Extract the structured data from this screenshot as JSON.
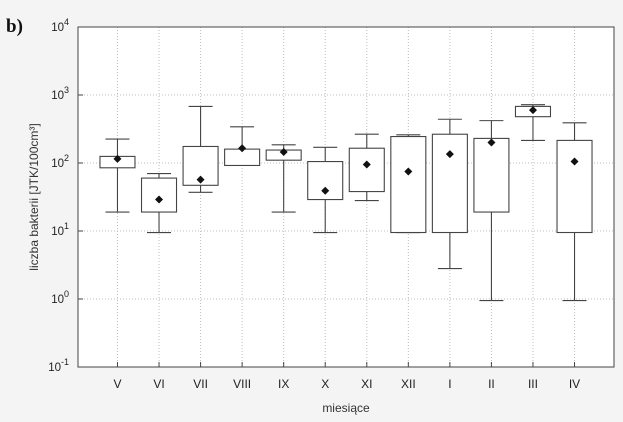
{
  "chart_data": {
    "type": "boxplot",
    "panel_label": "b)",
    "xlabel": "miesiące",
    "ylabel": "liczba bakterii [JTK/100cm³]",
    "yscale": "log",
    "ylim": [
      0.1,
      10000
    ],
    "yticks": [
      {
        "value": 0.1,
        "base": "10",
        "exp": "-1"
      },
      {
        "value": 1,
        "base": "10",
        "exp": "0"
      },
      {
        "value": 10,
        "base": "10",
        "exp": "1"
      },
      {
        "value": 100,
        "base": "10",
        "exp": "2"
      },
      {
        "value": 1000,
        "base": "10",
        "exp": "3"
      },
      {
        "value": 10000,
        "base": "10",
        "exp": "4"
      }
    ],
    "grid": true,
    "categories": [
      "V",
      "VI",
      "VII",
      "VIII",
      "IX",
      "X",
      "XI",
      "XII",
      "I",
      "II",
      "III",
      "IV"
    ],
    "boxes": [
      {
        "min": 19,
        "q1": 85,
        "q3": 125,
        "max": 225,
        "mean": 115
      },
      {
        "min": 9.5,
        "q1": 19,
        "q3": 60,
        "max": 70,
        "mean": 29
      },
      {
        "min": 37,
        "q1": 47,
        "q3": 175,
        "max": 680,
        "mean": 57
      },
      {
        "min": 92,
        "q1": 92,
        "q3": 160,
        "max": 340,
        "mean": 165
      },
      {
        "min": 19,
        "q1": 110,
        "q3": 155,
        "max": 185,
        "mean": 145
      },
      {
        "min": 9.5,
        "q1": 29,
        "q3": 105,
        "max": 170,
        "mean": 39
      },
      {
        "min": 28,
        "q1": 38,
        "q3": 165,
        "max": 265,
        "mean": 95
      },
      {
        "min": 9.5,
        "q1": 9.5,
        "q3": 245,
        "max": 260,
        "mean": 75
      },
      {
        "min": 2.8,
        "q1": 9.5,
        "q3": 265,
        "max": 440,
        "mean": 135
      },
      {
        "min": 0.95,
        "q1": 19,
        "q3": 230,
        "max": 420,
        "mean": 200
      },
      {
        "min": 215,
        "q1": 480,
        "q3": 680,
        "max": 720,
        "mean": 600
      },
      {
        "min": 0.95,
        "q1": 9.5,
        "q3": 215,
        "max": 390,
        "mean": 105
      }
    ],
    "colors": {
      "box_fill": "#ffffff",
      "stroke": "#444444",
      "grid": "#bdbdbd",
      "mean_marker": "#111111"
    }
  }
}
